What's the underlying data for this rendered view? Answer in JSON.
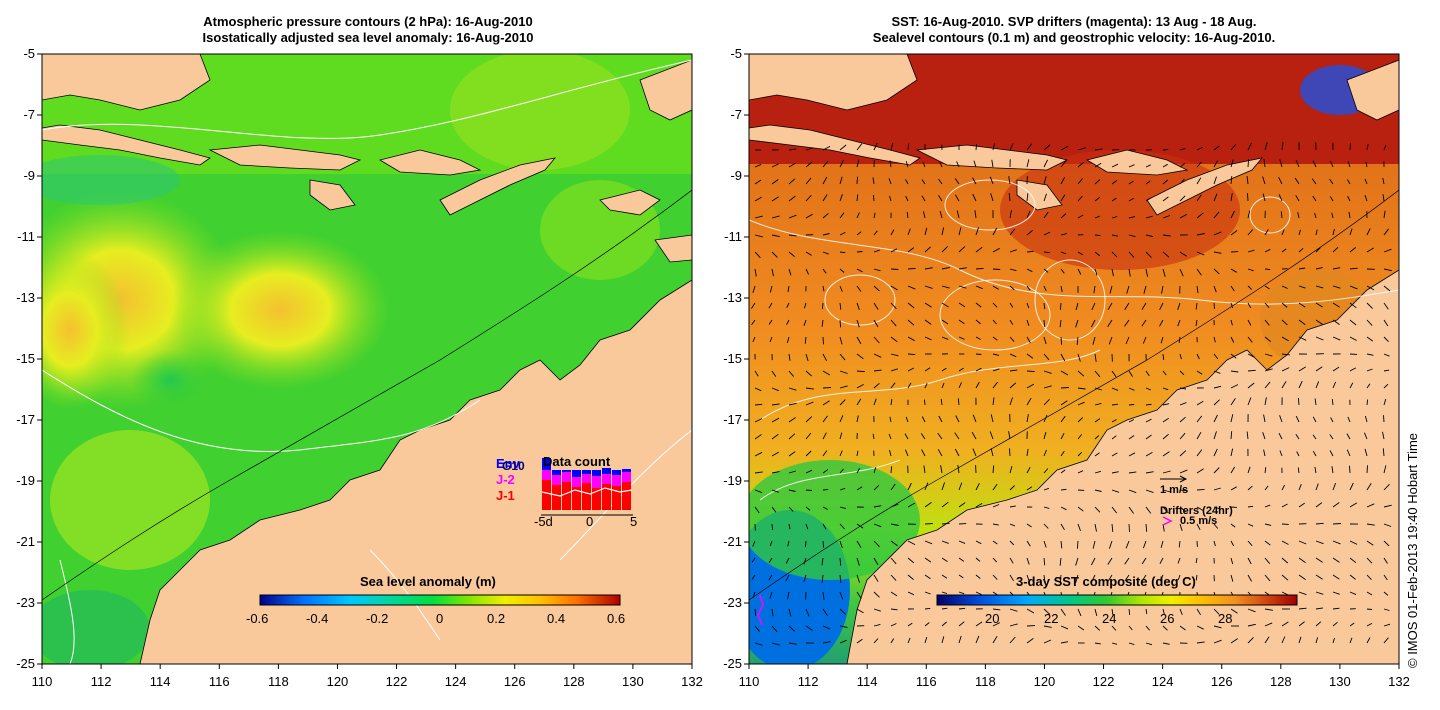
{
  "left_panel": {
    "title_line1": "Atmospheric pressure contours (2 hPa): 16-Aug-2010",
    "title_line2": "Isostatically adjusted sea level anomaly: 16-Aug-2010",
    "colorbar_title": "Sea level anomaly (m)",
    "colorbar_labels": [
      "-0.6",
      "-0.4",
      "-0.2",
      "0",
      "0.2",
      "0.4",
      "0.6"
    ],
    "inset": {
      "title": "Data count",
      "legend": [
        "Env",
        "J-2",
        "J-1"
      ],
      "legend_colors": [
        "#0000ff",
        "#ff00ff",
        "#ff0000"
      ],
      "xlabels": [
        "-5d",
        "0",
        "5"
      ],
      "extra_label": "G10"
    }
  },
  "right_panel": {
    "title_line1": "SST: 16-Aug-2010. SVP drifters (magenta): 13 Aug - 18 Aug.",
    "title_line2": "Sealevel contours (0.1 m) and geostrophic velocity: 16-Aug-2010.",
    "colorbar_title": "3-day SST composite (deg C)",
    "colorbar_labels": [
      "20",
      "22",
      "24",
      "26",
      "28"
    ],
    "velocity_key": "1 m/s",
    "drifter_key_title": "Drifters (24hr)",
    "drifter_key_value": "0.5 m/s"
  },
  "y_ticks": [
    "-5",
    "-7",
    "-9",
    "-11",
    "-13",
    "-15",
    "-17",
    "-19",
    "-21",
    "-23",
    "-25"
  ],
  "x_ticks": [
    "110",
    "112",
    "114",
    "116",
    "118",
    "120",
    "122",
    "124",
    "126",
    "128",
    "130",
    "132"
  ],
  "credit": "© IMOS 01-Feb-2013 19:40 Hobart Time",
  "colors": {
    "land": "#f9c99c",
    "ssla_ramp": [
      "#00008b",
      "#0070ff",
      "#00c8ff",
      "#00d890",
      "#00e040",
      "#60e000",
      "#b0f000",
      "#ffff00",
      "#ffc000",
      "#ff8000",
      "#e03000",
      "#b00000"
    ],
    "sst_ramp": [
      "#00006a",
      "#0050e0",
      "#00a8ff",
      "#00c888",
      "#30c830",
      "#a0e000",
      "#f0f000",
      "#ffc000",
      "#f09020",
      "#e06010",
      "#c02000",
      "#a00000"
    ]
  }
}
